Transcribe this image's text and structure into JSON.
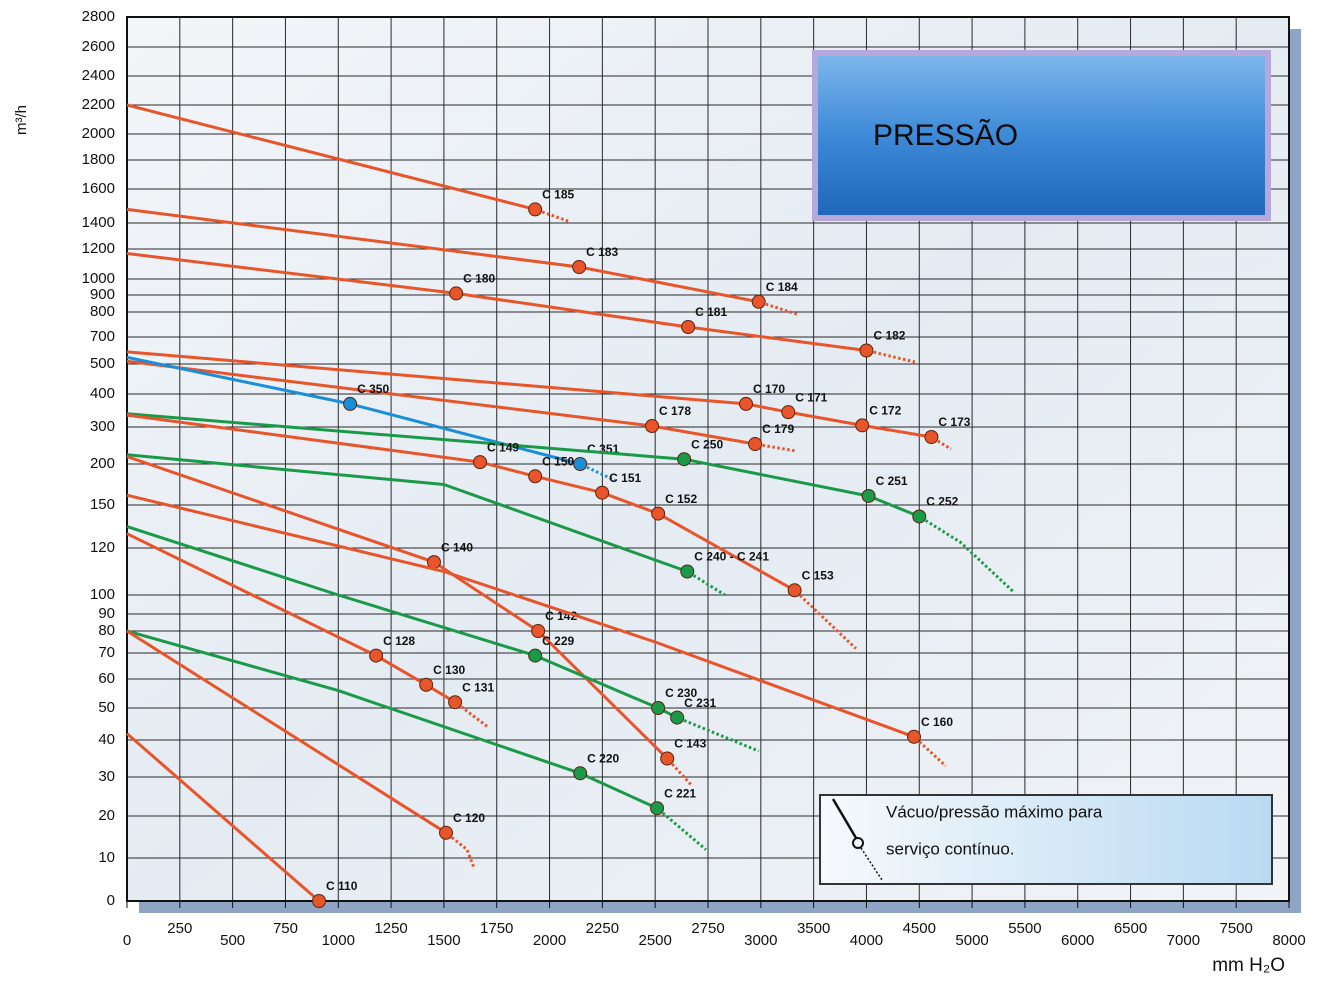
{
  "chart_data": {
    "type": "line",
    "panel_title": "PRESSÃO",
    "ylabel": "m³/h",
    "xlabel": "mm H₂O",
    "legend": [
      "Vácuo/pressão máximo para",
      "serviço contínuo."
    ],
    "grid": true,
    "xticks": [
      0,
      250,
      500,
      750,
      1000,
      1250,
      1500,
      1750,
      2000,
      2250,
      2500,
      2750,
      3000,
      3500,
      4000,
      4500,
      5000,
      5500,
      6000,
      6500,
      7000,
      7500,
      8000
    ],
    "yticks": [
      0,
      10,
      20,
      30,
      40,
      50,
      60,
      70,
      80,
      90,
      100,
      120,
      150,
      200,
      300,
      400,
      500,
      700,
      800,
      900,
      1000,
      1200,
      1400,
      1600,
      1800,
      2000,
      2200,
      2400,
      2600,
      2800
    ],
    "xlim": [
      0,
      8000
    ],
    "ylim": [
      0,
      2800
    ],
    "series": [
      {
        "color": "#e8552a",
        "x": [
          0,
          1932,
          2090
        ],
        "y": [
          2200,
          1480,
          1410
        ],
        "labels": [
          null,
          "C 185",
          null
        ],
        "dashed_after": 1
      },
      {
        "color": "#e8552a",
        "x": [
          0,
          2140,
          2990,
          3350
        ],
        "y": [
          1480,
          1080,
          860,
          790
        ],
        "labels": [
          null,
          "C 183",
          "C 184",
          null
        ],
        "dashed_after": 2
      },
      {
        "color": "#e8552a",
        "x": [
          0,
          1558,
          2656,
          4000,
          4460
        ],
        "y": [
          1170,
          910,
          740,
          600,
          515
        ],
        "labels": [
          null,
          "C 180",
          "C 181",
          "C 182",
          null
        ],
        "dashed_after": 3
      },
      {
        "color": "#e8552a",
        "x": [
          0,
          2930,
          3260,
          3960,
          4615,
          4800
        ],
        "y": [
          590,
          370,
          345,
          305,
          273,
          240
        ],
        "labels": [
          null,
          "C 170",
          "C 171",
          "C 172",
          "C 173",
          null
        ],
        "dashed_after": 4
      },
      {
        "color": "#e8552a",
        "x": [
          0,
          2485,
          2973,
          3340
        ],
        "y": [
          520,
          303,
          254,
          235
        ],
        "labels": [
          null,
          "C 178",
          "C 179",
          null
        ],
        "dashed_after": 2
      },
      {
        "color": "#1a8fd8",
        "x": [
          0,
          1056,
          2145,
          2310
        ],
        "y": [
          550,
          370,
          200,
          180
        ],
        "labels": [
          null,
          "C 350",
          "C 351",
          null
        ],
        "dashed_after": 2
      },
      {
        "color": "#1a9a48",
        "x": [
          0,
          2637,
          4020,
          4500,
          4890,
          5400
        ],
        "y": [
          340,
          213,
          161,
          142,
          124,
          101
        ],
        "labels": [
          null,
          "C 250",
          "C 251",
          "C 252",
          null,
          null
        ],
        "dashed_after": 3
      },
      {
        "color": "#e8552a",
        "x": [
          0,
          1671,
          1932,
          2249,
          2514,
          3320,
          3900
        ],
        "y": [
          336,
          205,
          185,
          165,
          144,
          102,
          72
        ],
        "labels": [
          null,
          "C 149",
          "C 150",
          "C 151",
          "C 152",
          "C 153",
          null
        ],
        "dashed_after": 5
      },
      {
        "color": "#1a9a48",
        "x": [
          0,
          1500,
          2652,
          2830
        ],
        "y": [
          225,
          175,
          110,
          100
        ],
        "labels": [
          null,
          null,
          "C 240 - C 241",
          null
        ],
        "dashed_after": 2
      },
      {
        "color": "#e8552a",
        "x": [
          0,
          1453,
          1946,
          2557,
          2670
        ],
        "y": [
          220,
          114,
          80,
          35,
          28
        ],
        "labels": [
          null,
          "C 140",
          "C 142",
          "C 143",
          null
        ],
        "dashed_after": 3
      },
      {
        "color": "#e8552a",
        "x": [
          0,
          1500,
          2500,
          4450,
          4750
        ],
        "y": [
          162,
          110,
          75,
          41,
          33
        ],
        "labels": [
          null,
          null,
          null,
          "C 160",
          null
        ],
        "dashed_after": 3
      },
      {
        "color": "#1a9a48",
        "x": [
          0,
          1000,
          1932,
          2514,
          2604,
          2990
        ],
        "y": [
          135,
          100,
          69,
          50,
          47,
          37
        ],
        "labels": [
          null,
          null,
          "C 229",
          "C 230",
          "C 231",
          null
        ],
        "dashed_after": 4
      },
      {
        "color": "#e8552a",
        "x": [
          0,
          1179,
          1416,
          1553,
          1710
        ],
        "y": [
          130,
          69,
          58,
          52,
          44
        ],
        "labels": [
          null,
          "C 128",
          "C 130",
          "C 131",
          null
        ],
        "dashed_after": 3
      },
      {
        "color": "#1a9a48",
        "x": [
          0,
          1000,
          2145,
          2509,
          2740
        ],
        "y": [
          80,
          56,
          31,
          22,
          12
        ],
        "labels": [
          null,
          null,
          "C 220",
          "C 221",
          null
        ],
        "dashed_after": 3
      },
      {
        "color": "#e8552a",
        "x": [
          0,
          1510,
          1610,
          1640
        ],
        "y": [
          80,
          16,
          12,
          8
        ],
        "labels": [
          null,
          "C 120",
          null,
          null
        ],
        "dashed_after": 1
      },
      {
        "color": "#e8552a",
        "x": [
          0,
          909
        ],
        "y": [
          42,
          0
        ],
        "labels": [
          null,
          "C 110"
        ],
        "dashed_after": 1
      }
    ]
  }
}
